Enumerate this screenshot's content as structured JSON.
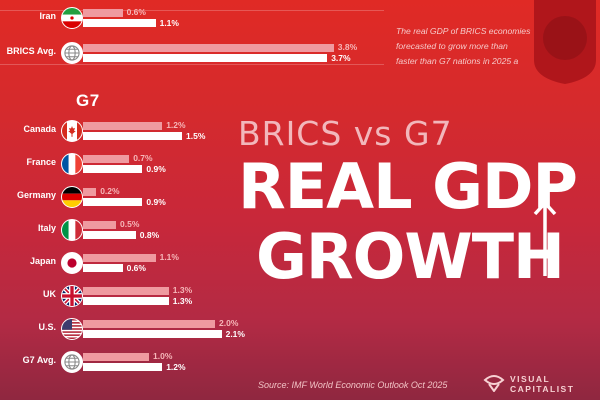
{
  "chart_data": {
    "type": "bar",
    "series": [
      {
        "name": "",
        "color": "#ef9aa0"
      },
      {
        "name": "",
        "color": "#ffffff"
      }
    ],
    "groups": [
      {
        "label": "",
        "rows": [
          {
            "name": "Iran",
            "flag": "iran-flag-icon",
            "v1": 0.6,
            "v2": 1.1,
            "t1": "0.6%",
            "t2": "1.1%"
          },
          {
            "name": "BRICS Avg.",
            "flag": "globe-icon",
            "v1": 3.8,
            "v2": 3.7,
            "t1": "3.8%",
            "t2": "3.7%"
          }
        ]
      },
      {
        "label": "G7",
        "rows": [
          {
            "name": "Canada",
            "flag": "canada-flag-icon",
            "v1": 1.2,
            "v2": 1.5,
            "t1": "1.2%",
            "t2": "1.5%"
          },
          {
            "name": "France",
            "flag": "france-flag-icon",
            "v1": 0.7,
            "v2": 0.9,
            "t1": "0.7%",
            "t2": "0.9%"
          },
          {
            "name": "Germany",
            "flag": "germany-flag-icon",
            "v1": 0.2,
            "v2": 0.9,
            "t1": "0.2%",
            "t2": "0.9%"
          },
          {
            "name": "Italy",
            "flag": "italy-flag-icon",
            "v1": 0.5,
            "v2": 0.8,
            "t1": "0.5%",
            "t2": "0.8%"
          },
          {
            "name": "Japan",
            "flag": "japan-flag-icon",
            "v1": 1.1,
            "v2": 0.6,
            "t1": "1.1%",
            "t2": "0.6%"
          },
          {
            "name": "UK",
            "flag": "uk-flag-icon",
            "v1": 1.3,
            "v2": 1.3,
            "t1": "1.3%",
            "t2": "1.3%"
          },
          {
            "name": "U.S.",
            "flag": "usa-flag-icon",
            "v1": 2.0,
            "v2": 2.1,
            "t1": "2.0%",
            "t2": "2.1%"
          },
          {
            "name": "G7 Avg.",
            "flag": "globe-icon",
            "v1": 1.0,
            "v2": 1.2,
            "t1": "1.0%",
            "t2": "1.2%"
          }
        ]
      }
    ]
  },
  "header": {
    "subtitle": "BRICS vs G7",
    "title_line1": "REAL GDP",
    "title_line2": "GROWTH",
    "note": "The real GDP of BRICS economies\nforecasted to grow more than\nfaster than G7 nations in 2025 a"
  },
  "footer": {
    "source": "Source: IMF World Economic Outlook Oct 2025",
    "brand": "VISUAL\nCAPITALIST"
  },
  "colors": {
    "accent": "#d62a2c",
    "bar_2025": "#ef9aa0",
    "bar_2026": "#ffffff"
  }
}
